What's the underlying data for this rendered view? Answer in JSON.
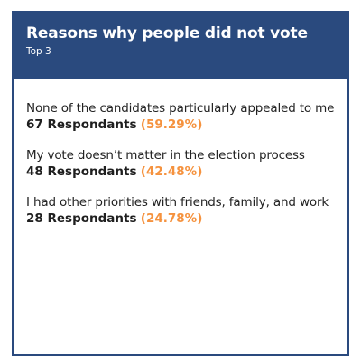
{
  "header": {
    "title": "Reasons why people did not vote",
    "subtitle": "Top 3"
  },
  "reasons": [
    {
      "text": "None of the candidates particularly appealed to me",
      "count": "67 Respondants",
      "percent": "(59.29%)"
    },
    {
      "text": "My vote doesn’t matter in the election process",
      "count": "48 Respondants",
      "percent": "(42.48%)"
    },
    {
      "text": "I had other priorities with friends, family, and work",
      "count": "28 Respondants",
      "percent": "(24.78%)"
    }
  ],
  "colors": {
    "header_bg": "#2a4a7e",
    "accent": "#f5923e"
  }
}
